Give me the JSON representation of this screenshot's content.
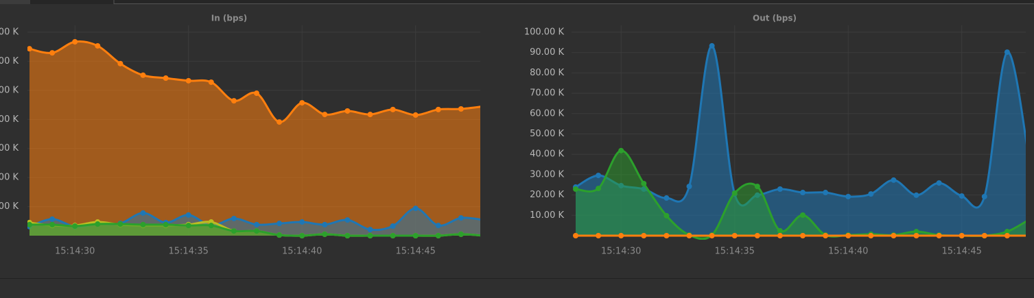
{
  "chart_data": [
    {
      "type": "area",
      "title": "In (bps)",
      "categories": [
        null,
        null,
        "15:14:30",
        null,
        null,
        null,
        null,
        "15:14:35",
        null,
        null,
        null,
        null,
        "15:14:40",
        null,
        null,
        null,
        null,
        "15:14:45",
        null,
        null,
        null
      ],
      "series": [
        {
          "name": "orange",
          "color": "#ff7f0e",
          "values": [
            64300,
            62900,
            66700,
            65300,
            59200,
            55200,
            54200,
            53300,
            52800,
            46400,
            49000,
            39100,
            45700,
            41700,
            42900,
            41700,
            43400,
            41500,
            43400,
            43600,
            44500
          ]
        },
        {
          "name": "blue",
          "color": "#1f77b4",
          "values": [
            3100,
            5700,
            3100,
            4000,
            4200,
            7800,
            4500,
            7100,
            3500,
            5900,
            3800,
            4200,
            4700,
            3800,
            5400,
            2100,
            3300,
            9400,
            3500,
            6100,
            5400
          ]
        },
        {
          "name": "yellow",
          "color": "#bcbd22",
          "values": [
            4500,
            3500,
            3500,
            4700,
            3800,
            3500,
            3500,
            3800,
            4700,
            1600,
            1600,
            200,
            0,
            500,
            0,
            0,
            0,
            0,
            0,
            500,
            0
          ]
        },
        {
          "name": "green",
          "color": "#2ca02c",
          "values": [
            3800,
            3800,
            3300,
            4000,
            4000,
            3800,
            3800,
            3500,
            3500,
            1600,
            1600,
            200,
            0,
            500,
            0,
            0,
            0,
            0,
            0,
            500,
            0
          ]
        }
      ],
      "ylim": [
        0,
        70000
      ],
      "yticks": [
        {
          "value": 10000,
          "label": "00 K"
        },
        {
          "value": 20000,
          "label": "00 K"
        },
        {
          "value": 30000,
          "label": "00 K"
        },
        {
          "value": 40000,
          "label": "00 K"
        },
        {
          "value": 50000,
          "label": "00 K"
        },
        {
          "value": 60000,
          "label": "00 K"
        },
        {
          "value": 70000,
          "label": "00 K"
        }
      ],
      "grid": true
    },
    {
      "type": "area",
      "title": "Out (bps)",
      "categories": [
        null,
        null,
        "15:14:30",
        null,
        null,
        null,
        null,
        "15:14:35",
        null,
        null,
        null,
        null,
        "15:14:40",
        null,
        null,
        null,
        null,
        "15:14:45",
        null,
        null,
        null
      ],
      "series": [
        {
          "name": "blue",
          "color": "#1f77b4",
          "values": [
            23900,
            29600,
            24600,
            22900,
            18500,
            24200,
            93300,
            20500,
            19900,
            22900,
            21200,
            21200,
            19200,
            20500,
            27300,
            19900,
            25900,
            19500,
            19200,
            90200,
            35000
          ]
        },
        {
          "name": "green",
          "color": "#2ca02c",
          "values": [
            22900,
            23200,
            41800,
            25600,
            9800,
            300,
            300,
            20900,
            24200,
            2400,
            10100,
            300,
            300,
            700,
            300,
            2000,
            300,
            0,
            0,
            2000,
            8100
          ]
        },
        {
          "name": "orange",
          "color": "#ff7f0e",
          "values": [
            0,
            0,
            0,
            0,
            0,
            0,
            0,
            0,
            0,
            0,
            0,
            0,
            0,
            0,
            0,
            0,
            0,
            0,
            0,
            0,
            0
          ]
        }
      ],
      "ylim": [
        0,
        100000
      ],
      "yticks": [
        {
          "value": 10000,
          "label": "10.00 K"
        },
        {
          "value": 20000,
          "label": "20.00 K"
        },
        {
          "value": 30000,
          "label": "30.00 K"
        },
        {
          "value": 40000,
          "label": "40.00 K"
        },
        {
          "value": 50000,
          "label": "50.00 K"
        },
        {
          "value": 60000,
          "label": "60.00 K"
        },
        {
          "value": 70000,
          "label": "70.00 K"
        },
        {
          "value": 80000,
          "label": "80.00 K"
        },
        {
          "value": 90000,
          "label": "90.00 K"
        },
        {
          "value": 100000,
          "label": "100.00 K"
        }
      ],
      "grid": true
    }
  ]
}
